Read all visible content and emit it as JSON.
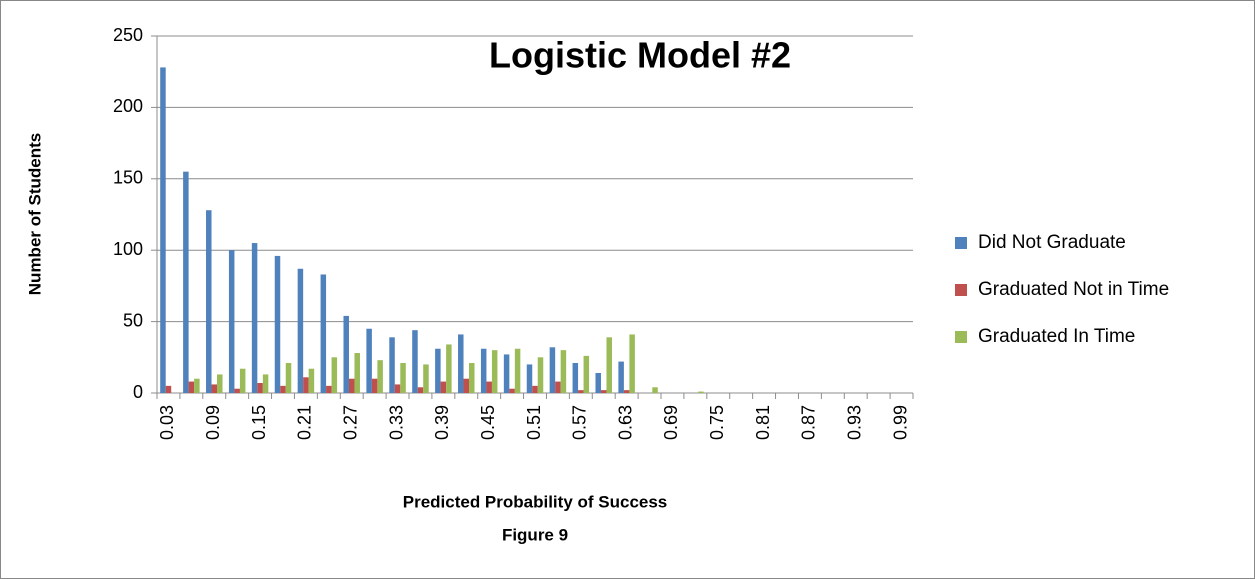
{
  "chart_data": {
    "type": "bar",
    "title": "Logistic Model #2",
    "x_label": "Predicted Probability of Success",
    "caption": "Figure 9",
    "y_label": "Number of Students",
    "categories": [
      "0.03",
      null,
      "0.09",
      null,
      "0.15",
      null,
      "0.21",
      null,
      "0.27",
      null,
      "0.33",
      null,
      "0.39",
      null,
      "0.45",
      null,
      "0.51",
      null,
      "0.57",
      null,
      "0.63",
      null,
      "0.69",
      null,
      "0.75",
      null,
      "0.81",
      null,
      "0.87",
      null,
      "0.93",
      null,
      "0.99"
    ],
    "series": [
      {
        "name": "Did Not Graduate",
        "color": "#4f81bd",
        "values": [
          228,
          155,
          128,
          100,
          105,
          96,
          87,
          83,
          54,
          45,
          39,
          44,
          31,
          41,
          31,
          27,
          20,
          32,
          21,
          14,
          22,
          0,
          0,
          0,
          0,
          0,
          0,
          0,
          0,
          0,
          0,
          0,
          0
        ]
      },
      {
        "name": "Graduated Not in Time",
        "color": "#c0504d",
        "values": [
          5,
          8,
          6,
          3,
          7,
          5,
          11,
          5,
          10,
          10,
          6,
          4,
          8,
          10,
          8,
          3,
          5,
          8,
          2,
          2,
          2,
          0,
          0,
          0,
          0,
          0,
          0,
          0,
          0,
          0,
          0,
          0,
          0
        ]
      },
      {
        "name": "Graduated In Time",
        "color": "#9bbb59",
        "values": [
          0,
          10,
          13,
          17,
          13,
          21,
          17,
          25,
          28,
          23,
          21,
          20,
          34,
          21,
          30,
          31,
          25,
          30,
          26,
          39,
          41,
          4,
          0,
          1,
          0,
          0,
          0,
          0,
          0,
          0,
          0,
          0,
          0
        ]
      }
    ],
    "ylim": [
      0,
      250
    ],
    "yticks": [
      0,
      50,
      100,
      150,
      200,
      250
    ],
    "grid": true,
    "legend": "right"
  }
}
